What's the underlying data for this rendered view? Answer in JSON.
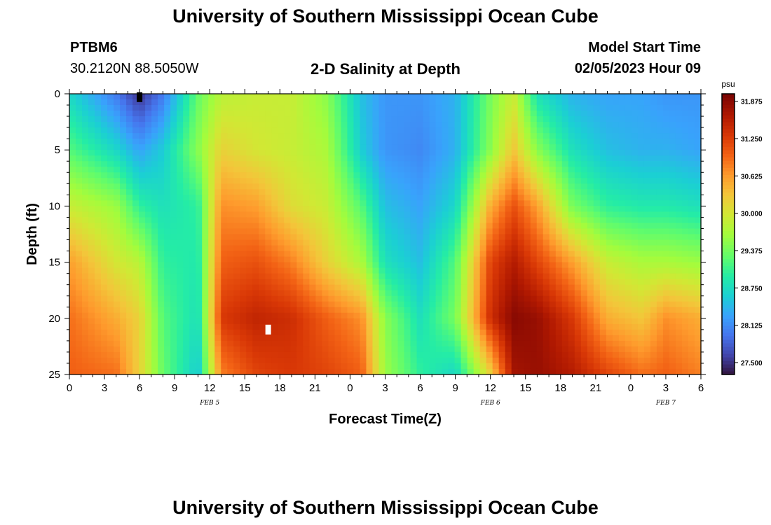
{
  "header": {
    "title": "University of Southern Mississippi Ocean Cube",
    "station": "PTBM6",
    "coords": "30.2120N  88.5050W",
    "subtitle": "2-D Salinity at Depth",
    "model_label": "Model Start Time",
    "model_time": "02/05/2023 Hour 09"
  },
  "footer": {
    "title": "University of Southern Mississippi Ocean Cube"
  },
  "chart_data": {
    "type": "heatmap",
    "title": "2-D Salinity at Depth",
    "xlabel": "Forecast Time(Z)",
    "ylabel": "Depth (ft)",
    "x_unit": "forecast hour from 00Z Feb 5",
    "xlim": [
      0,
      54
    ],
    "ylim": [
      0,
      25
    ],
    "y_inverted": true,
    "x_tick_values": [
      0,
      3,
      6,
      9,
      12,
      15,
      18,
      21,
      24,
      27,
      30,
      33,
      36,
      39,
      42,
      45,
      48,
      51,
      54
    ],
    "x_tick_labels": [
      "0",
      "3",
      "6",
      "9",
      "12",
      "15",
      "18",
      "21",
      "0",
      "3",
      "6",
      "9",
      "12",
      "15",
      "18",
      "21",
      "0",
      "3",
      "6"
    ],
    "y_tick_values": [
      0,
      5,
      10,
      15,
      20,
      25
    ],
    "y_tick_labels": [
      "0",
      "5",
      "10",
      "15",
      "20",
      "25"
    ],
    "date_labels": [
      {
        "x": 12,
        "label": "FEB 5"
      },
      {
        "x": 36,
        "label": "FEB 6"
      },
      {
        "x": 51,
        "label": "FEB 7"
      }
    ],
    "colorbar": {
      "unit": "psu",
      "min": 27.3,
      "max": 32.0,
      "ticks": [
        27.5,
        28.125,
        28.75,
        29.375,
        30.0,
        30.625,
        31.25,
        31.875
      ],
      "tick_labels": [
        "27.500",
        "28.125",
        "28.750",
        "29.375",
        "30.000",
        "30.625",
        "31.250",
        "31.875"
      ],
      "colormap": "turbo"
    },
    "field": {
      "description": "salinity (psu) vs forecast hour and depth (ft)",
      "hours": [
        0,
        4,
        6,
        8,
        11,
        13,
        16,
        19,
        22,
        25,
        27,
        30,
        33,
        36,
        38,
        40,
        43,
        46,
        49,
        51,
        54
      ],
      "depths": [
        0,
        5,
        10,
        15,
        20,
        25
      ],
      "values": [
        [
          28.7,
          28.0,
          27.5,
          28.0,
          29.3,
          29.8,
          29.9,
          29.9,
          29.5,
          28.5,
          28.2,
          28.2,
          28.4,
          29.4,
          29.9,
          28.8,
          28.4,
          28.3,
          28.3,
          28.2,
          28.2
        ],
        [
          29.2,
          28.7,
          28.3,
          28.6,
          29.5,
          30.2,
          30.0,
          29.9,
          29.7,
          28.6,
          28.2,
          28.1,
          28.4,
          29.5,
          30.3,
          29.5,
          28.8,
          28.5,
          28.4,
          28.4,
          28.3
        ],
        [
          29.9,
          29.6,
          29.0,
          28.8,
          29.0,
          30.7,
          30.6,
          30.1,
          29.9,
          29.2,
          28.5,
          28.3,
          28.7,
          30.5,
          31.1,
          30.6,
          29.4,
          29.0,
          28.9,
          28.9,
          28.8
        ],
        [
          30.6,
          30.0,
          29.8,
          29.0,
          28.9,
          31.0,
          31.1,
          30.8,
          30.2,
          29.7,
          28.8,
          28.5,
          29.2,
          31.2,
          31.6,
          31.2,
          30.6,
          29.9,
          29.7,
          29.7,
          29.6
        ],
        [
          30.9,
          30.5,
          30.2,
          29.2,
          28.8,
          31.3,
          31.5,
          31.4,
          31.0,
          30.7,
          29.5,
          28.8,
          29.4,
          31.4,
          31.9,
          31.8,
          31.3,
          30.5,
          30.3,
          30.7,
          30.5
        ],
        [
          31.0,
          30.9,
          30.2,
          29.3,
          28.6,
          30.8,
          31.2,
          31.3,
          31.2,
          31.0,
          29.6,
          29.0,
          28.7,
          30.2,
          31.7,
          31.8,
          31.6,
          31.2,
          30.9,
          31.0,
          30.8
        ]
      ]
    },
    "markers": [
      {
        "x": 6.0,
        "y": 0.3,
        "color": "#000000"
      },
      {
        "x": 17.0,
        "y": 21.0,
        "color": "#ffffff"
      }
    ]
  }
}
